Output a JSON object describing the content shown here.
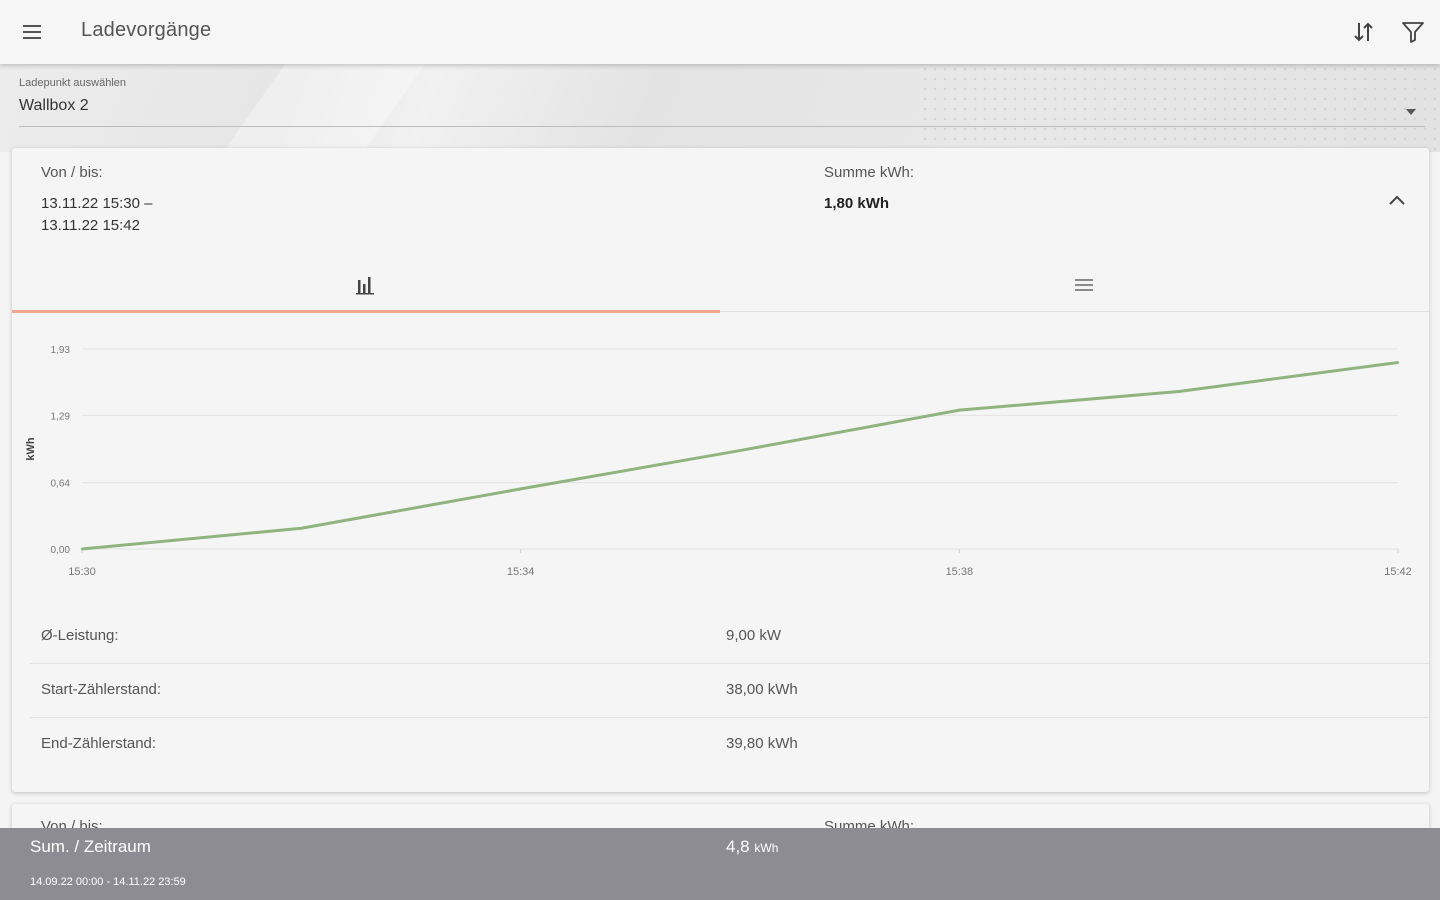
{
  "app": {
    "title": "Ladevorgänge"
  },
  "toolbar": {
    "menu_icon": "menu-icon",
    "sort_icon": "sort-icon",
    "filter_icon": "filter-icon"
  },
  "selector": {
    "label": "Ladepunkt auswählen",
    "value": "Wallbox 2"
  },
  "session": {
    "range_label": "Von / bis:",
    "range_start": "13.11.22 15:30 –",
    "range_end": "13.11.22 15:42",
    "sum_label": "Summe kWh:",
    "sum_value": "1,80 kWh",
    "tabs": [
      {
        "name": "chart",
        "icon": "bar-chart-icon",
        "active": true
      },
      {
        "name": "list",
        "icon": "list-icon",
        "active": false
      }
    ],
    "stats": [
      {
        "label": "Ø-Leistung:",
        "value": "9,00 kW"
      },
      {
        "label": "Start-Zählerstand:",
        "value": "38,00 kWh"
      },
      {
        "label": "End-Zählerstand:",
        "value": "39,80 kWh"
      }
    ]
  },
  "chart_data": {
    "type": "line",
    "ylabel": "kWh",
    "xlabel": "",
    "y_ticks": [
      "0,00",
      "0,64",
      "1,29",
      "1,93"
    ],
    "y_tick_values": [
      0,
      0.64,
      1.29,
      1.93
    ],
    "x_ticks": [
      "15:30",
      "15:34",
      "15:38",
      "15:42"
    ],
    "x_tick_minutes": [
      0,
      4,
      8,
      12
    ],
    "ylim": [
      0,
      1.93
    ],
    "xlim_minutes": [
      0,
      12
    ],
    "series": [
      {
        "color": "#8fb47f",
        "x_minutes": [
          0,
          2,
          4,
          6,
          8,
          10,
          12
        ],
        "values": [
          0.0,
          0.2,
          0.58,
          0.95,
          1.34,
          1.52,
          1.8
        ]
      }
    ],
    "grid": true
  },
  "next_session": {
    "range_label": "Von / bis:",
    "sum_label": "Summe kWh:"
  },
  "footer": {
    "title": "Sum. / Zeitraum",
    "range": "14.09.22 00:00 - 14.11.22 23:59",
    "sum_value": "4,8",
    "sum_unit": "kWh"
  }
}
